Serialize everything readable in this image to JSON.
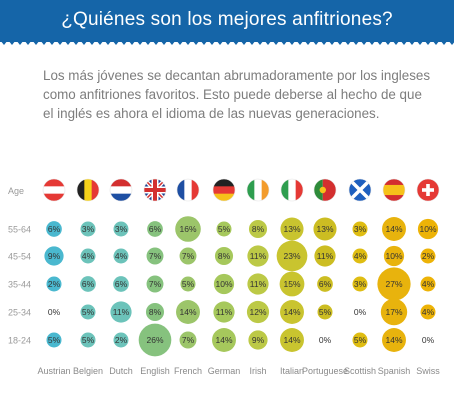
{
  "header": {
    "title": "¿Quiénes son los mejores anfitriones?",
    "background": "#1565a8"
  },
  "intro": {
    "text": "Los más jóvenes se decantan abrumadoramente por los ingleses como anfitriones favoritos. Esto puede deberse al hecho de que el inglés es ahora el idioma de las nuevas generaciones."
  },
  "chart_data": {
    "type": "bubble-matrix",
    "row_axis_label": "Age",
    "rows": [
      "55-64",
      "45-54",
      "35-44",
      "25-34",
      "18-24"
    ],
    "columns": [
      "Austrian",
      "Belgien",
      "Dutch",
      "English",
      "French",
      "German",
      "Irish",
      "Italian",
      "Portuguese",
      "Scottish",
      "Spanish",
      "Swiss"
    ],
    "column_flag_icons": [
      "austria-flag-icon",
      "belgium-flag-icon",
      "netherlands-flag-icon",
      "uk-flag-icon",
      "france-flag-icon",
      "germany-flag-icon",
      "ireland-flag-icon",
      "italy-flag-icon",
      "portugal-flag-icon",
      "scotland-flag-icon",
      "spain-flag-icon",
      "switzerland-flag-icon"
    ],
    "column_colors": [
      "#4ab8cf",
      "#6cc3ba",
      "#6cc3ba",
      "#86c27e",
      "#9cc56a",
      "#a6c85c",
      "#bcc946",
      "#c9c42f",
      "#ccbd22",
      "#dfbd12",
      "#e8b30d",
      "#edb307"
    ],
    "values": [
      [
        6,
        3,
        3,
        6,
        16,
        5,
        8,
        13,
        13,
        3,
        14,
        10
      ],
      [
        9,
        4,
        4,
        7,
        7,
        8,
        11,
        23,
        11,
        4,
        10,
        2
      ],
      [
        2,
        6,
        6,
        7,
        5,
        10,
        11,
        15,
        6,
        3,
        27,
        4
      ],
      [
        0,
        5,
        11,
        8,
        14,
        11,
        12,
        14,
        5,
        0,
        17,
        4
      ],
      [
        5,
        5,
        2,
        26,
        7,
        14,
        9,
        14,
        0,
        5,
        14,
        0
      ]
    ],
    "unit": "%"
  }
}
